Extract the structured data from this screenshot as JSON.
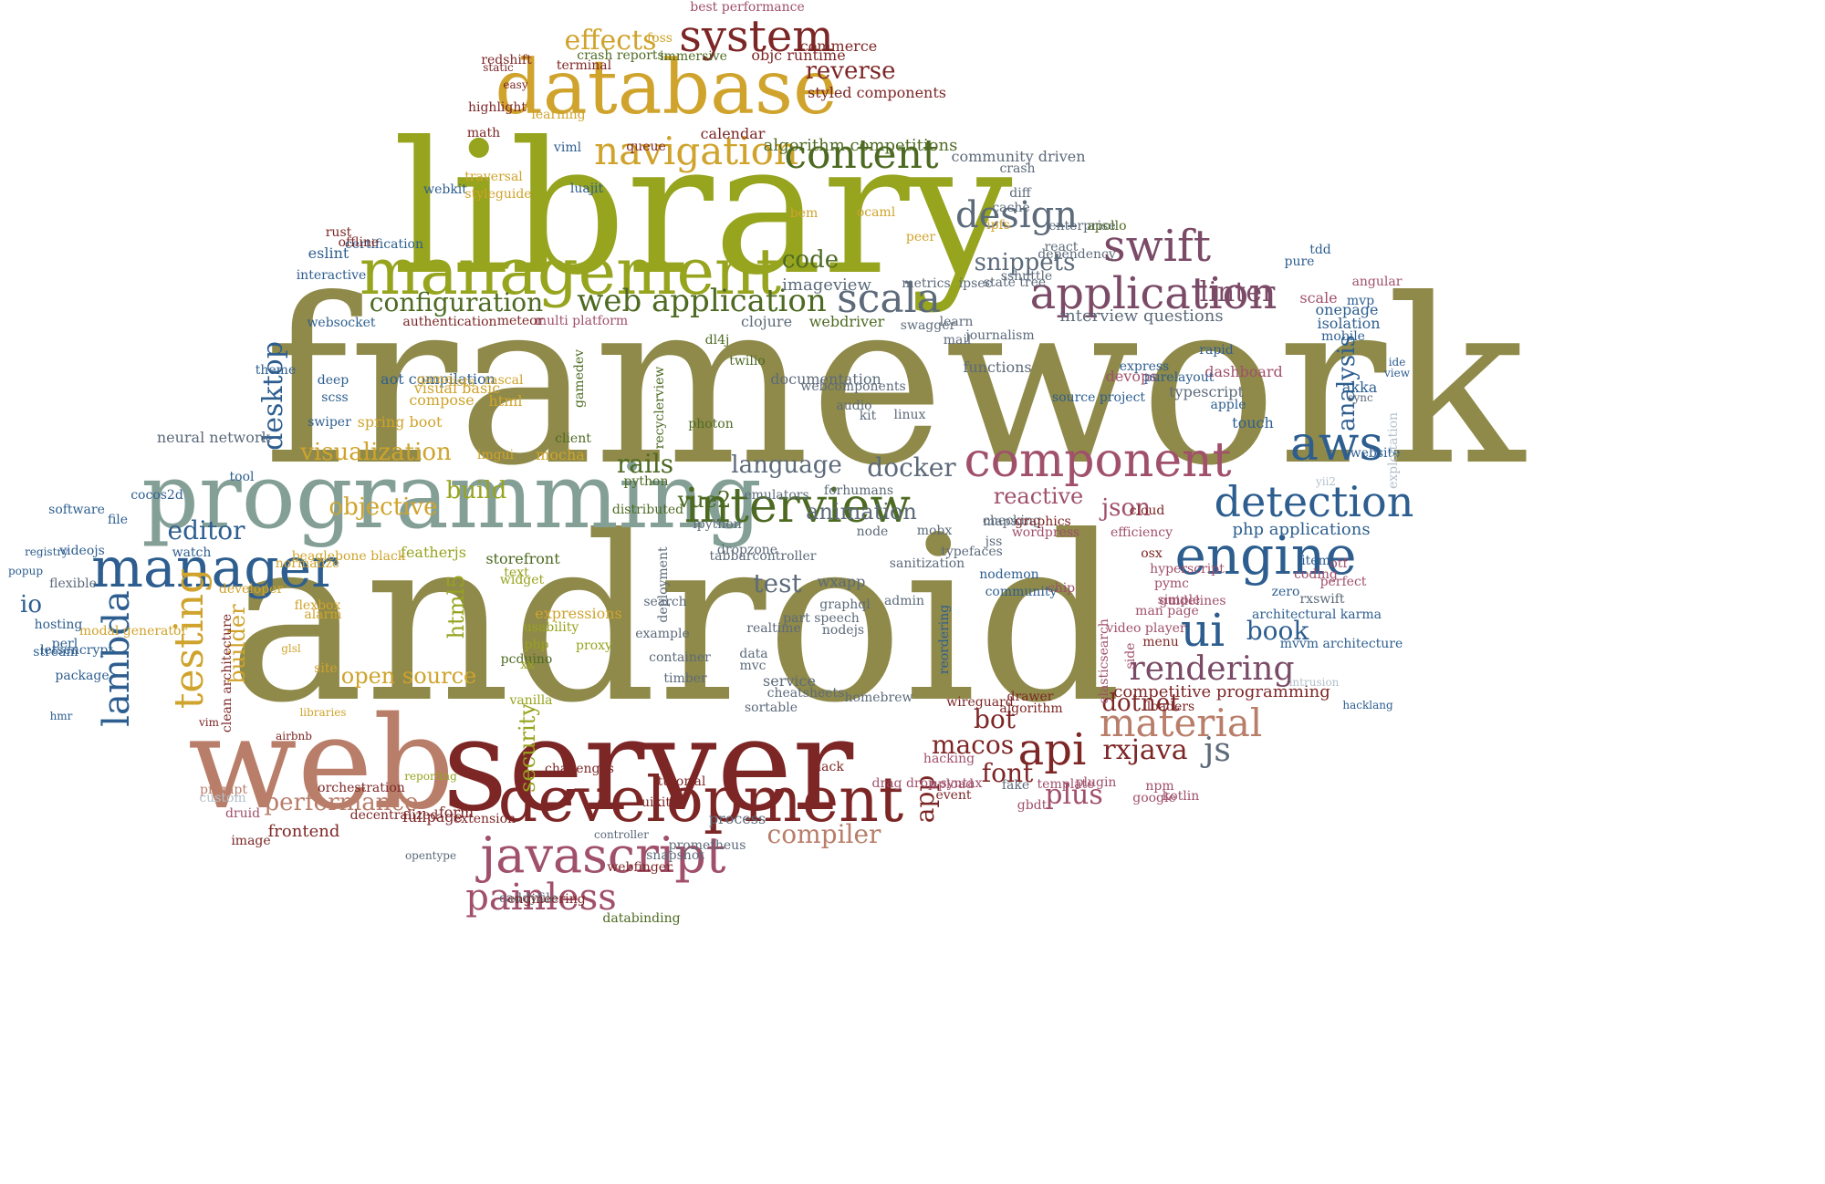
{
  "palette": {
    "olive": "#8f8a4a",
    "green": "#96a41e",
    "gold": "#cfa32c",
    "maroon": "#7d2626",
    "blue": "#2d5e8f",
    "sage": "#84a096",
    "plum": "#7a4a66",
    "slate": "#5c6a7a",
    "terra": "#b97e6a",
    "dkgreen": "#4d6a22",
    "rose": "#a0506a",
    "light": "#b4c0cc"
  },
  "words": [
    {
      "text": "framework",
      "color": "olive"
    },
    {
      "text": "android",
      "color": "olive"
    },
    {
      "text": "library",
      "color": "green"
    },
    {
      "text": "server",
      "color": "maroon"
    },
    {
      "text": "web",
      "color": "terra"
    },
    {
      "text": "programming",
      "color": "sage"
    },
    {
      "text": "database",
      "color": "gold"
    },
    {
      "text": "management",
      "color": "green"
    },
    {
      "text": "development",
      "color": "maroon"
    },
    {
      "text": "interview",
      "color": "dkgreen"
    },
    {
      "text": "manager",
      "color": "blue"
    },
    {
      "text": "engine",
      "color": "blue"
    },
    {
      "text": "component",
      "color": "rose"
    },
    {
      "text": "application",
      "color": "plum"
    },
    {
      "text": "swift",
      "color": "plum"
    },
    {
      "text": "javascript",
      "color": "rose"
    },
    {
      "text": "aws",
      "color": "blue"
    },
    {
      "text": "system",
      "color": "maroon"
    },
    {
      "text": "navigation",
      "color": "gold"
    },
    {
      "text": "content",
      "color": "dkgreen"
    },
    {
      "text": "testing",
      "color": "gold"
    },
    {
      "text": "lambda",
      "color": "blue"
    },
    {
      "text": "detection",
      "color": "blue"
    },
    {
      "text": "ui",
      "color": "blue"
    },
    {
      "text": "material",
      "color": "terra"
    },
    {
      "text": "api",
      "color": "maroon"
    },
    {
      "text": "painless",
      "color": "rose"
    },
    {
      "text": "scala",
      "color": "slate"
    },
    {
      "text": "design",
      "color": "slate"
    },
    {
      "text": "web application",
      "color": "dkgreen"
    },
    {
      "text": "configuration",
      "color": "dkgreen"
    },
    {
      "text": "effects",
      "color": "gold"
    },
    {
      "text": "reverse",
      "color": "maroon"
    },
    {
      "text": "visualization",
      "color": "gold"
    },
    {
      "text": "rendering",
      "color": "plum"
    },
    {
      "text": "js",
      "color": "slate"
    },
    {
      "text": "performance",
      "color": "terra"
    },
    {
      "text": "desktop",
      "color": "blue"
    },
    {
      "text": "rails",
      "color": "dkgreen"
    },
    {
      "text": "docker",
      "color": "slate"
    },
    {
      "text": "language",
      "color": "slate"
    },
    {
      "text": "linter",
      "color": "plum"
    },
    {
      "text": "snippets",
      "color": "slate"
    },
    {
      "text": "code",
      "color": "dkgreen"
    },
    {
      "text": "objective",
      "color": "gold"
    },
    {
      "text": "editor",
      "color": "blue"
    },
    {
      "text": "animation",
      "color": "slate"
    },
    {
      "text": "vue2",
      "color": "dkgreen"
    },
    {
      "text": "reactive",
      "color": "rose"
    },
    {
      "text": "test",
      "color": "slate"
    },
    {
      "text": "book",
      "color": "blue"
    },
    {
      "text": "json",
      "color": "rose"
    },
    {
      "text": "analysis",
      "color": "blue"
    },
    {
      "text": "dotnet",
      "color": "maroon"
    },
    {
      "text": "bot",
      "color": "maroon"
    },
    {
      "text": "macos",
      "color": "maroon"
    },
    {
      "text": "font",
      "color": "maroon"
    },
    {
      "text": "rxjava",
      "color": "maroon"
    },
    {
      "text": "plus",
      "color": "rose"
    },
    {
      "text": "compiler",
      "color": "terra"
    },
    {
      "text": "security",
      "color": "green"
    },
    {
      "text": "builder",
      "color": "gold"
    },
    {
      "text": "html5",
      "color": "green"
    },
    {
      "text": "open source",
      "color": "gold"
    },
    {
      "text": "build",
      "color": "green"
    },
    {
      "text": "io",
      "color": "blue"
    },
    {
      "text": "frontend",
      "color": "maroon"
    },
    {
      "text": "app",
      "color": "maroon"
    },
    {
      "text": "neural network",
      "color": "slate"
    },
    {
      "text": "interview questions",
      "color": "slate"
    },
    {
      "text": "algorithm competitions",
      "color": "dkgreen"
    },
    {
      "text": "php applications",
      "color": "blue"
    },
    {
      "text": "imageview",
      "color": "slate"
    },
    {
      "text": "webdriver",
      "color": "dkgreen"
    },
    {
      "text": "clojure",
      "color": "slate"
    },
    {
      "text": "styled components",
      "color": "maroon"
    },
    {
      "text": "objc runtime",
      "color": "maroon"
    },
    {
      "text": "commerce",
      "color": "maroon"
    },
    {
      "text": "community driven",
      "color": "slate"
    },
    {
      "text": "documentation",
      "color": "slate"
    },
    {
      "text": "dashboard",
      "color": "rose"
    },
    {
      "text": "competitive programming",
      "color": "maroon"
    },
    {
      "text": "touch",
      "color": "blue"
    },
    {
      "text": "typescript",
      "color": "slate"
    },
    {
      "text": "devops",
      "color": "rose"
    },
    {
      "text": "akka",
      "color": "blue"
    },
    {
      "text": "onepage",
      "color": "blue"
    },
    {
      "text": "scale",
      "color": "rose"
    },
    {
      "text": "isolation",
      "color": "blue"
    },
    {
      "text": "angular",
      "color": "rose"
    },
    {
      "text": "website",
      "color": "blue"
    },
    {
      "text": "redshift",
      "color": "maroon"
    },
    {
      "text": "highlight",
      "color": "maroon"
    },
    {
      "text": "learning",
      "color": "gold"
    },
    {
      "text": "math",
      "color": "maroon"
    },
    {
      "text": "eslint",
      "color": "blue"
    },
    {
      "text": "certification",
      "color": "blue"
    },
    {
      "text": "webkit",
      "color": "blue"
    },
    {
      "text": "interactive",
      "color": "blue"
    },
    {
      "text": "websocket",
      "color": "blue"
    },
    {
      "text": "scss",
      "color": "blue"
    },
    {
      "text": "swiper",
      "color": "blue"
    },
    {
      "text": "deep",
      "color": "blue"
    },
    {
      "text": "theme",
      "color": "blue"
    },
    {
      "text": "cocos2d",
      "color": "blue"
    },
    {
      "text": "file",
      "color": "blue"
    },
    {
      "text": "software",
      "color": "blue"
    },
    {
      "text": "videojs",
      "color": "blue"
    },
    {
      "text": "watch",
      "color": "blue"
    },
    {
      "text": "flexible",
      "color": "slate"
    },
    {
      "text": "perl",
      "color": "blue"
    },
    {
      "text": "letsencrypt",
      "color": "blue"
    },
    {
      "text": "package",
      "color": "blue"
    },
    {
      "text": "prompt",
      "color": "terra"
    },
    {
      "text": "image",
      "color": "maroon"
    },
    {
      "text": "druid",
      "color": "rose"
    },
    {
      "text": "custom",
      "color": "light"
    },
    {
      "text": "airbnb",
      "color": "maroon"
    },
    {
      "text": "vim",
      "color": "maroon"
    },
    {
      "text": "site",
      "color": "gold"
    },
    {
      "text": "glsl",
      "color": "gold"
    },
    {
      "text": "alarm",
      "color": "gold"
    },
    {
      "text": "flexbox",
      "color": "gold"
    },
    {
      "text": "libraries",
      "color": "gold"
    },
    {
      "text": "clean architecture",
      "color": "maroon"
    },
    {
      "text": "modal generator",
      "color": "gold"
    },
    {
      "text": "aot compilation",
      "color": "blue"
    },
    {
      "text": "game",
      "color": "gold"
    },
    {
      "text": "visual basic",
      "color": "gold"
    },
    {
      "text": "compose",
      "color": "gold"
    },
    {
      "text": "spring boot",
      "color": "gold"
    },
    {
      "text": "html",
      "color": "gold"
    },
    {
      "text": "lists",
      "color": "gold"
    },
    {
      "text": "rascal",
      "color": "gold"
    },
    {
      "text": "imgui",
      "color": "gold"
    },
    {
      "text": "mocha",
      "color": "gold"
    },
    {
      "text": "client",
      "color": "dkgreen"
    },
    {
      "text": "gamedev",
      "color": "dkgreen"
    },
    {
      "text": "recyclerview",
      "color": "dkgreen"
    },
    {
      "text": "photon",
      "color": "dkgreen"
    },
    {
      "text": "twilio",
      "color": "dkgreen"
    },
    {
      "text": "dl4j",
      "color": "dkgreen"
    },
    {
      "text": "python",
      "color": "dkgreen"
    },
    {
      "text": "distributed",
      "color": "dkgreen"
    },
    {
      "text": "storefront",
      "color": "dkgreen"
    },
    {
      "text": "featherjs",
      "color": "green"
    },
    {
      "text": "beaglebone black",
      "color": "gold"
    },
    {
      "text": "normalize",
      "color": "gold"
    },
    {
      "text": "developer",
      "color": "gold"
    },
    {
      "text": "expressions",
      "color": "gold"
    },
    {
      "text": "usability",
      "color": "green"
    },
    {
      "text": "proxy",
      "color": "green"
    },
    {
      "text": "pcduino",
      "color": "dkgreen"
    },
    {
      "text": "widget",
      "color": "green"
    },
    {
      "text": "text",
      "color": "green"
    },
    {
      "text": "php",
      "color": "green"
    },
    {
      "text": "xx",
      "color": "green"
    },
    {
      "text": "vanilla",
      "color": "green"
    },
    {
      "text": "reporting",
      "color": "green"
    },
    {
      "text": "extension",
      "color": "maroon"
    },
    {
      "text": "form",
      "color": "maroon"
    },
    {
      "text": "fullpage",
      "color": "maroon"
    },
    {
      "text": "decentralized",
      "color": "maroon"
    },
    {
      "text": "orchestration",
      "color": "maroon"
    },
    {
      "text": "opentype",
      "color": "slate"
    },
    {
      "text": "caddyfile",
      "color": "slate"
    },
    {
      "text": "engineering",
      "color": "maroon"
    },
    {
      "text": "databinding",
      "color": "dkgreen"
    },
    {
      "text": "webfinger",
      "color": "maroon"
    },
    {
      "text": "snapshot",
      "color": "slate"
    },
    {
      "text": "prometheus",
      "color": "slate"
    },
    {
      "text": "controller",
      "color": "slate"
    },
    {
      "text": "tutorial",
      "color": "maroon"
    },
    {
      "text": "uikit",
      "color": "maroon"
    },
    {
      "text": "challenges",
      "color": "maroon"
    },
    {
      "text": "timber",
      "color": "slate"
    },
    {
      "text": "container",
      "color": "slate"
    },
    {
      "text": "example",
      "color": "slate"
    },
    {
      "text": "search",
      "color": "slate"
    },
    {
      "text": "deployment",
      "color": "slate"
    },
    {
      "text": "realtime",
      "color": "slate"
    },
    {
      "text": "data",
      "color": "slate"
    },
    {
      "text": "mvc",
      "color": "slate"
    },
    {
      "text": "service",
      "color": "slate"
    },
    {
      "text": "sortable",
      "color": "slate"
    },
    {
      "text": "cheatsheets",
      "color": "slate"
    },
    {
      "text": "homebrew",
      "color": "slate"
    },
    {
      "text": "process",
      "color": "slate"
    },
    {
      "text": "emulators",
      "color": "slate"
    },
    {
      "text": "ipython",
      "color": "slate"
    },
    {
      "text": "dropzone",
      "color": "slate"
    },
    {
      "text": "tabbarcontroller",
      "color": "slate"
    },
    {
      "text": "wxapp",
      "color": "slate"
    },
    {
      "text": "graphql",
      "color": "slate"
    },
    {
      "text": "part speech",
      "color": "slate"
    },
    {
      "text": "nodejs",
      "color": "slate"
    },
    {
      "text": "admin",
      "color": "slate"
    },
    {
      "text": "sanitization",
      "color": "slate"
    },
    {
      "text": "typefaces",
      "color": "slate"
    },
    {
      "text": "node",
      "color": "slate"
    },
    {
      "text": "mobx",
      "color": "slate"
    },
    {
      "text": "jss",
      "color": "slate"
    },
    {
      "text": "checking",
      "color": "slate"
    },
    {
      "text": "maps",
      "color": "slate"
    },
    {
      "text": "forhumans",
      "color": "slate"
    },
    {
      "text": "linux",
      "color": "slate"
    },
    {
      "text": "kit",
      "color": "slate"
    },
    {
      "text": "audio",
      "color": "slate"
    },
    {
      "text": "webcomponents",
      "color": "slate"
    },
    {
      "text": "functions",
      "color": "slate"
    },
    {
      "text": "mail",
      "color": "slate"
    },
    {
      "text": "journalism",
      "color": "slate"
    },
    {
      "text": "swagger",
      "color": "slate"
    },
    {
      "text": "learn",
      "color": "slate"
    },
    {
      "text": "metrics",
      "color": "slate"
    },
    {
      "text": "ipsec",
      "color": "slate"
    },
    {
      "text": "state tree",
      "color": "slate"
    },
    {
      "text": "sshuttle",
      "color": "slate"
    },
    {
      "text": "dependency",
      "color": "slate"
    },
    {
      "text": "react",
      "color": "slate"
    },
    {
      "text": "enterprise",
      "color": "slate"
    },
    {
      "text": "apollo",
      "color": "dkgreen"
    },
    {
      "text": "diff",
      "color": "slate"
    },
    {
      "text": "cache",
      "color": "slate"
    },
    {
      "text": "crash",
      "color": "slate"
    },
    {
      "text": "ocaml",
      "color": "gold"
    },
    {
      "text": "bem",
      "color": "gold"
    },
    {
      "text": "peer",
      "color": "gold"
    },
    {
      "text": "ipfs",
      "color": "gold"
    },
    {
      "text": "styleguide",
      "color": "gold"
    },
    {
      "text": "traversal",
      "color": "gold"
    },
    {
      "text": "luajit",
      "color": "blue"
    },
    {
      "text": "viml",
      "color": "blue"
    },
    {
      "text": "queue",
      "color": "maroon"
    },
    {
      "text": "calendar",
      "color": "maroon"
    },
    {
      "text": "rust",
      "color": "maroon"
    },
    {
      "text": "offline",
      "color": "maroon"
    },
    {
      "text": "static",
      "color": "maroon"
    },
    {
      "text": "easy",
      "color": "maroon"
    },
    {
      "text": "terminal",
      "color": "maroon"
    },
    {
      "text": "crash reports",
      "color": "dkgreen"
    },
    {
      "text": "immersive",
      "color": "dkgreen"
    },
    {
      "text": "foss",
      "color": "gold"
    },
    {
      "text": "best performance",
      "color": "rose"
    },
    {
      "text": "multi platform",
      "color": "rose"
    },
    {
      "text": "meteor",
      "color": "maroon"
    },
    {
      "text": "authentication",
      "color": "maroon"
    },
    {
      "text": "wordpress",
      "color": "rose"
    },
    {
      "text": "graphics",
      "color": "maroon"
    },
    {
      "text": "algorithm",
      "color": "maroon"
    },
    {
      "text": "drawer",
      "color": "maroon"
    },
    {
      "text": "loaders",
      "color": "maroon"
    },
    {
      "text": "wireguard",
      "color": "maroon"
    },
    {
      "text": "hacking",
      "color": "rose"
    },
    {
      "text": "drag drop syntax",
      "color": "rose"
    },
    {
      "text": "event",
      "color": "maroon"
    },
    {
      "text": "upload",
      "color": "rose"
    },
    {
      "text": "hack",
      "color": "maroon"
    },
    {
      "text": "fake",
      "color": "slate"
    },
    {
      "text": "plugin",
      "color": "rose"
    },
    {
      "text": "template",
      "color": "rose"
    },
    {
      "text": "gbdt",
      "color": "rose"
    },
    {
      "text": "kotlin",
      "color": "rose"
    },
    {
      "text": "npm",
      "color": "rose"
    },
    {
      "text": "google",
      "color": "rose"
    },
    {
      "text": "hyperscript",
      "color": "rose"
    },
    {
      "text": "pymc",
      "color": "rose"
    },
    {
      "text": "simple",
      "color": "rose"
    },
    {
      "text": "man page",
      "color": "rose"
    },
    {
      "text": "guidelines",
      "color": "rose"
    },
    {
      "text": "video player",
      "color": "rose"
    },
    {
      "text": "menu",
      "color": "maroon"
    },
    {
      "text": "cloud",
      "color": "maroon"
    },
    {
      "text": "osx",
      "color": "maroon"
    },
    {
      "text": "efficiency",
      "color": "rose"
    },
    {
      "text": "chip",
      "color": "rose"
    },
    {
      "text": "side",
      "color": "rose"
    },
    {
      "text": "elasticsearch",
      "color": "rose"
    },
    {
      "text": "reordering",
      "color": "blue"
    },
    {
      "text": "nodemon",
      "color": "blue"
    },
    {
      "text": "community",
      "color": "blue"
    },
    {
      "text": "source project",
      "color": "blue"
    },
    {
      "text": "express",
      "color": "blue"
    },
    {
      "text": "purelayout",
      "color": "blue"
    },
    {
      "text": "apple",
      "color": "blue"
    },
    {
      "text": "zero",
      "color": "blue"
    },
    {
      "text": "coding",
      "color": "rose"
    },
    {
      "text": "item",
      "color": "blue"
    },
    {
      "text": "rxswift",
      "color": "slate"
    },
    {
      "text": "perfect",
      "color": "rose"
    },
    {
      "text": "otf",
      "color": "rose"
    },
    {
      "text": "mvvm architecture",
      "color": "blue"
    },
    {
      "text": "architectural karma",
      "color": "blue"
    },
    {
      "text": "mobile",
      "color": "blue"
    },
    {
      "text": "mvp",
      "color": "blue"
    },
    {
      "text": "rapid",
      "color": "blue"
    },
    {
      "text": "tdd",
      "color": "blue"
    },
    {
      "text": "pure",
      "color": "blue"
    },
    {
      "text": "exploitation",
      "color": "light"
    },
    {
      "text": "intrusion",
      "color": "light"
    },
    {
      "text": "hacklang",
      "color": "blue"
    },
    {
      "text": "sync",
      "color": "slate"
    },
    {
      "text": "yii2",
      "color": "light"
    },
    {
      "text": "ide",
      "color": "blue"
    },
    {
      "text": "view",
      "color": "blue"
    },
    {
      "text": "hosting",
      "color": "blue"
    },
    {
      "text": "stream",
      "color": "blue"
    },
    {
      "text": "registry",
      "color": "blue"
    },
    {
      "text": "popup",
      "color": "blue"
    },
    {
      "text": "hmr",
      "color": "blue"
    },
    {
      "text": "tool",
      "color": "blue"
    }
  ]
}
